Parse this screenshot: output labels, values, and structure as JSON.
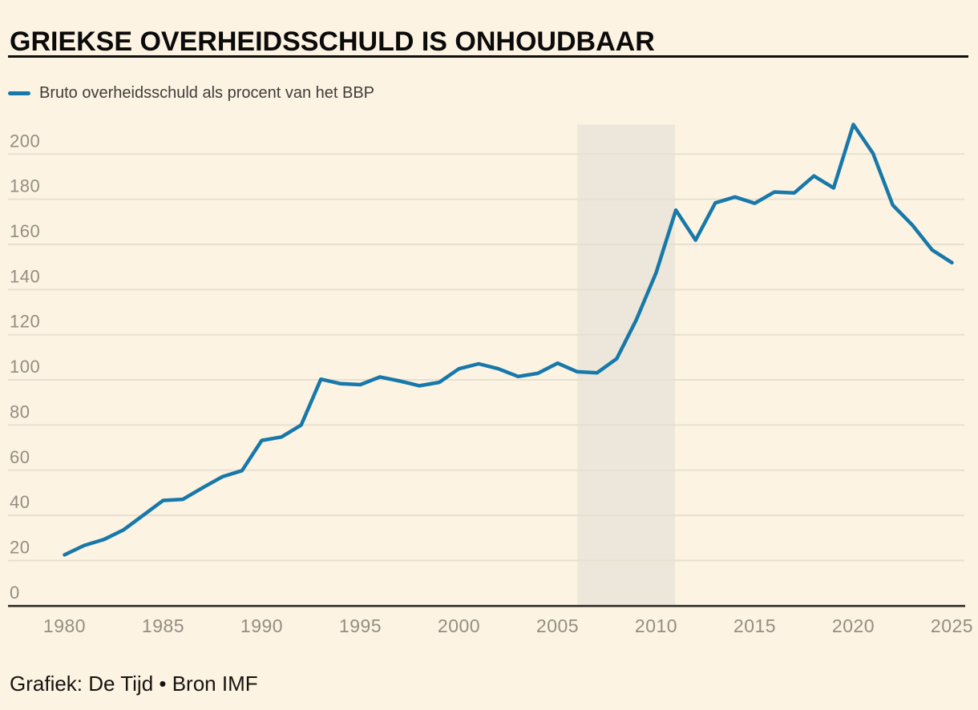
{
  "header": {
    "title": "GRIEKSE OVERHEIDSSCHULD IS ONHOUDBAAR"
  },
  "legend": {
    "label": "Bruto overheidsschuld als procent van het BBP"
  },
  "footer": {
    "source": "Grafiek: De Tijd • Bron IMF"
  },
  "chart_data": {
    "type": "line",
    "title": "GRIEKSE OVERHEIDSSCHULD IS ONHOUDBAAR",
    "xlabel": "",
    "ylabel": "",
    "legend_position": "top-left",
    "grid": true,
    "x": [
      1980,
      1981,
      1982,
      1983,
      1984,
      1985,
      1986,
      1987,
      1988,
      1989,
      1990,
      1991,
      1992,
      1993,
      1994,
      1995,
      1996,
      1997,
      1998,
      1999,
      2000,
      2001,
      2002,
      2003,
      2004,
      2005,
      2006,
      2007,
      2008,
      2009,
      2010,
      2011,
      2012,
      2013,
      2014,
      2015,
      2016,
      2017,
      2018,
      2019,
      2020,
      2021,
      2022,
      2023,
      2024,
      2025
    ],
    "series": [
      {
        "name": "Bruto overheidsschuld als procent van het BBP",
        "color": "#1778aa",
        "values": [
          22.5,
          26.7,
          29.3,
          33.6,
          40.1,
          46.6,
          47.1,
          52.2,
          57.1,
          59.8,
          73.2,
          74.7,
          80.0,
          100.3,
          98.3,
          97.9,
          101.3,
          99.5,
          97.4,
          98.9,
          104.9,
          107.1,
          104.9,
          101.5,
          102.9,
          107.4,
          103.6,
          103.1,
          109.4,
          126.7,
          147.5,
          175.2,
          161.9,
          178.4,
          181.0,
          178.2,
          183.2,
          182.8,
          190.3,
          185.0,
          213.1,
          200.3,
          177.4,
          168.5,
          157.5,
          151.9
        ]
      }
    ],
    "x_ticks": [
      1980,
      1985,
      1990,
      1995,
      2000,
      2005,
      2010,
      2015,
      2020,
      2025
    ],
    "y_ticks": [
      0,
      20,
      40,
      60,
      80,
      100,
      120,
      140,
      160,
      180,
      200
    ],
    "xlim": [
      1979.9,
      2025.6
    ],
    "ylim": [
      0,
      213.1
    ],
    "highlight_band": {
      "from": 2006,
      "to": 2010.95
    },
    "source": "Grafiek: De Tijd • Bron IMF",
    "colors": {
      "background": "#fdf3e3",
      "line": "#1778aa",
      "grid": "#e7e0d1",
      "axis": "#2e2a24",
      "tick_text": "#928e82",
      "band": "#ece7da",
      "title_text": "#0b0b0b",
      "legend_text": "#3f3d3a",
      "source_text": "#161310"
    }
  }
}
